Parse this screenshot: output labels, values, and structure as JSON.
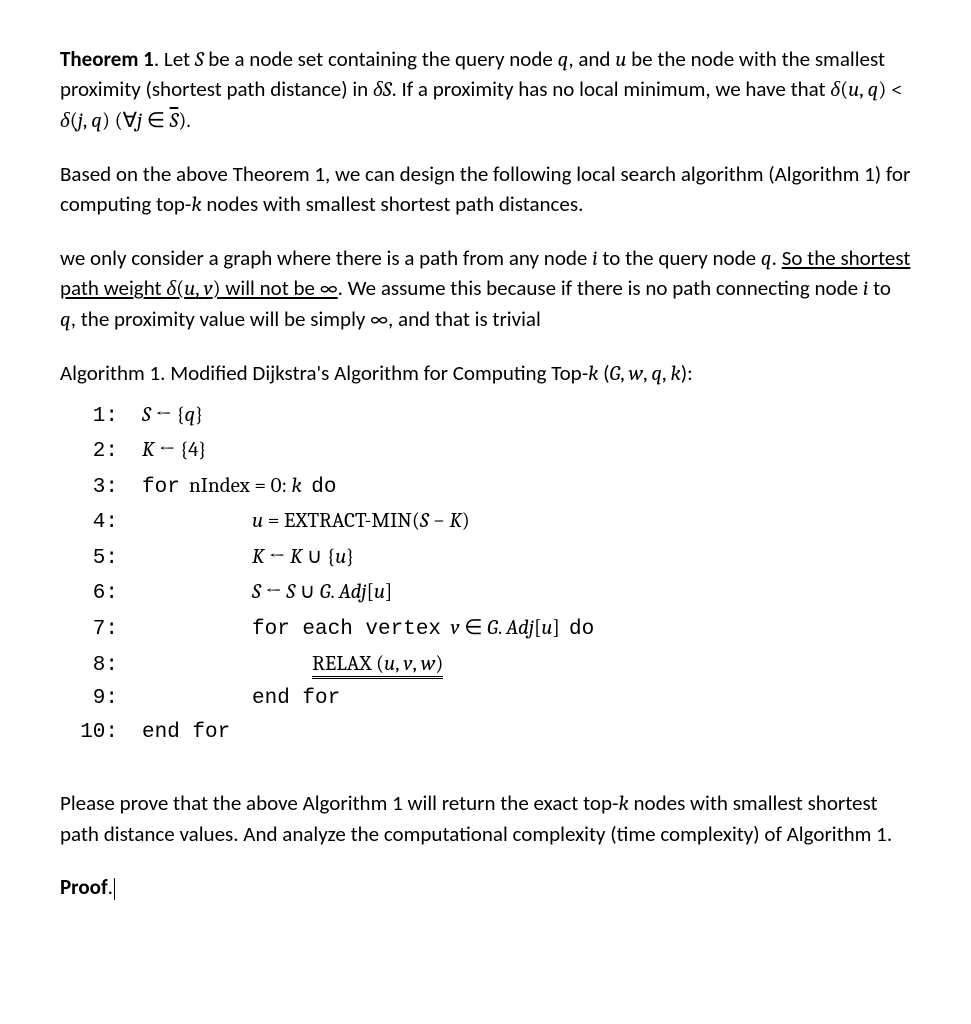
{
  "typography": {
    "body_font": "Calibri",
    "body_size_pt": 16,
    "math_font": "Cambria Math",
    "mono_font": "Courier New",
    "text_color": "#000000",
    "background_color": "#ffffff",
    "line_height": 1.4
  },
  "theorem": {
    "label": "Theorem 1",
    "text_a": ". Let ",
    "v1": "S",
    "text_b": " be a node set containing the query node ",
    "v2": "q",
    "text_c": ", and ",
    "v3": "u",
    "text_d": " be the node with the smallest proximity (shortest path distance) in ",
    "v4": "δS",
    "text_e": ". If a proximity has no local minimum, we have that ",
    "expr1_a": "δ",
    "expr1_b": "(",
    "expr1_c": "u",
    "expr1_d": ", ",
    "expr1_e": "q",
    "expr1_f": ") < ",
    "expr1_g": "δ",
    "expr1_h": "(",
    "expr1_i": "j",
    "expr1_j": ", ",
    "expr1_k": "q",
    "expr1_l": ") (∀",
    "expr1_m": "j",
    "expr1_n": " ∈ ",
    "expr1_o": "S",
    "expr1_p": ")."
  },
  "para2": {
    "a": "Based on the above Theorem 1, we can design the following local search algorithm (Algorithm 1) for computing top-",
    "k": "k",
    "b": " nodes with smallest shortest path distances."
  },
  "para3": {
    "a": "we only consider a graph where there is a path from any node ",
    "i": "i",
    "b": " to the query node ",
    "q": "q",
    "c": ". ",
    "ul_a": "So the shortest path weight ",
    "ul_d1": "δ",
    "ul_d2": "(",
    "ul_d3": "u",
    "ul_d4": ", ",
    "ul_d5": "v",
    "ul_d6": ")",
    "ul_b": " will not be ∞",
    "d": ". We assume this because if there is no path connecting node ",
    "i2": "i",
    "e": " to ",
    "q2": "q",
    "f": ", the proximity value will be simply ∞, and that is trivial"
  },
  "algo_title": {
    "a": "Algorithm 1. Modified Dijkstra's Algorithm for Computing Top-",
    "k": "k",
    "b": " (",
    "args_g": "G",
    "c1": ", ",
    "args_w": "w",
    "c2": ", ",
    "args_q": "q",
    "c3": ", ",
    "args_k": "k",
    "d": "):"
  },
  "lines": {
    "n1": "1:",
    "n2": "2:",
    "n3": "3:",
    "n4": "4:",
    "n5": "5:",
    "n6": "6:",
    "n7": "7:",
    "n8": "8:",
    "n9": "9:",
    "n10": "10:",
    "l1_a": "S",
    "l1_b": " ← {",
    "l1_c": "q",
    "l1_d": "}",
    "l2_a": "K",
    "l2_b": " ← {4}",
    "l3_a": "for",
    "l3_b": "  nIndex = 0: ",
    "l3_c": "k",
    "l3_d": "  ",
    "l3_e": "do",
    "l4_a": "u",
    "l4_b": " = EXTRACT-MIN(",
    "l4_c": "S",
    "l4_d": " − ",
    "l4_e": "K",
    "l4_f": ")",
    "l5_a": "K",
    "l5_b": " ← ",
    "l5_c": "K",
    "l5_d": " ∪ {",
    "l5_e": "u",
    "l5_f": "}",
    "l6_a": "S",
    "l6_b": " ← ",
    "l6_c": "S",
    "l6_d": " ∪ ",
    "l6_e": "G",
    "l6_f": ". ",
    "l6_g": "Adj",
    "l6_h": "[",
    "l6_i": "u",
    "l6_j": "]",
    "l7_a": "for each vertex",
    "l7_b": "  ",
    "l7_c": "v",
    "l7_d": " ∈ ",
    "l7_e": "G",
    "l7_f": ". ",
    "l7_g": "Adj",
    "l7_h": "[",
    "l7_i": "u",
    "l7_j": "]  ",
    "l7_k": "do",
    "l8_a": "RELAX ",
    "l8_b": "(",
    "l8_c": "u",
    "l8_d": ", ",
    "l8_e": "v",
    "l8_f": ", ",
    "l8_g": "w",
    "l8_h": ")",
    "l9": "end for",
    "l10": "end for"
  },
  "question": {
    "a": "Please prove that the above Algorithm 1 will return the exact top-",
    "k": "k",
    "b": " nodes with smallest shortest path distance values. And analyze the computational complexity (time complexity) of Algorithm 1."
  },
  "proof_label": "Proof",
  "proof_dot": "."
}
